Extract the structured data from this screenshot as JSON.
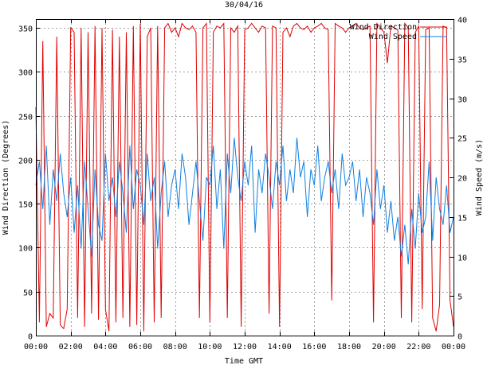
{
  "chart_data": {
    "type": "line",
    "title": "30/04/16",
    "xlabel": "Time GMT",
    "ylabel_left": "Wind Direction (Degrees)",
    "ylabel_right": "Wind Speed (m/s)",
    "x_ticks": [
      "00:00",
      "02:00",
      "04:00",
      "06:00",
      "08:00",
      "10:00",
      "12:00",
      "14:00",
      "16:00",
      "18:00",
      "20:00",
      "22:00",
      "00:00"
    ],
    "x_range_hours": [
      0,
      24
    ],
    "y_left_range": [
      0,
      360
    ],
    "y_left_ticks": [
      0,
      50,
      100,
      150,
      200,
      250,
      300,
      350
    ],
    "y_right_range": [
      0,
      40
    ],
    "y_right_ticks": [
      0,
      5,
      10,
      15,
      20,
      25,
      30,
      35,
      40
    ],
    "grid": true,
    "legend_position": "top-right",
    "series": [
      {
        "name": "Wind Direction",
        "axis": "left",
        "color": "#e00000",
        "x": [
          0.0,
          0.2,
          0.4,
          0.6,
          0.8,
          1.0,
          1.2,
          1.4,
          1.6,
          1.8,
          2.0,
          2.2,
          2.4,
          2.6,
          2.8,
          3.0,
          3.2,
          3.4,
          3.6,
          3.8,
          4.0,
          4.2,
          4.4,
          4.6,
          4.8,
          5.0,
          5.2,
          5.4,
          5.6,
          5.8,
          6.0,
          6.2,
          6.4,
          6.6,
          6.8,
          7.0,
          7.2,
          7.4,
          7.6,
          7.8,
          8.0,
          8.2,
          8.4,
          8.6,
          8.8,
          9.0,
          9.2,
          9.4,
          9.6,
          9.8,
          10.0,
          10.2,
          10.4,
          10.6,
          10.8,
          11.0,
          11.2,
          11.4,
          11.6,
          11.8,
          12.0,
          12.2,
          12.4,
          12.6,
          12.8,
          13.0,
          13.2,
          13.4,
          13.6,
          13.8,
          14.0,
          14.2,
          14.4,
          14.6,
          14.8,
          15.0,
          15.2,
          15.4,
          15.6,
          15.8,
          16.0,
          16.2,
          16.4,
          16.6,
          16.8,
          17.0,
          17.2,
          17.4,
          17.6,
          17.8,
          18.0,
          18.2,
          18.4,
          18.6,
          18.8,
          19.0,
          19.2,
          19.4,
          19.6,
          19.8,
          20.0,
          20.2,
          20.4,
          20.6,
          20.8,
          21.0,
          21.2,
          21.4,
          21.6,
          21.8,
          22.0,
          22.2,
          22.4,
          22.6,
          22.8,
          23.0,
          23.2,
          23.4,
          23.6,
          23.8,
          24.0
        ],
        "values": [
          260,
          15,
          335,
          10,
          25,
          20,
          340,
          12,
          8,
          30,
          350,
          345,
          20,
          350,
          10,
          345,
          25,
          352,
          18,
          350,
          30,
          5,
          348,
          15,
          340,
          20,
          345,
          10,
          352,
          12,
          355,
          5,
          340,
          350,
          15,
          352,
          20,
          350,
          355,
          345,
          350,
          340,
          355,
          350,
          348,
          352,
          345,
          20,
          350,
          355,
          15,
          345,
          352,
          350,
          355,
          20,
          350,
          345,
          352,
          10,
          348,
          350,
          355,
          350,
          345,
          352,
          350,
          25,
          352,
          350,
          10,
          345,
          350,
          340,
          352,
          355,
          350,
          348,
          352,
          345,
          350,
          352,
          355,
          350,
          348,
          40,
          355,
          352,
          350,
          345,
          350,
          352,
          355,
          350,
          348,
          350,
          352,
          15,
          355,
          350,
          345,
          310,
          352,
          350,
          348,
          20,
          355,
          350,
          15,
          345,
          352,
          30,
          348,
          350,
          20,
          5,
          35,
          352,
          350,
          40,
          10
        ],
        "values_note": "values estimated from chart; series oscillates heavily near 0/360 wrap"
      },
      {
        "name": "Wind Speed",
        "axis": "right",
        "color": "#1080e0",
        "x": [
          0.0,
          0.2,
          0.4,
          0.6,
          0.8,
          1.0,
          1.2,
          1.4,
          1.6,
          1.8,
          2.0,
          2.2,
          2.4,
          2.6,
          2.8,
          3.0,
          3.2,
          3.4,
          3.6,
          3.8,
          4.0,
          4.2,
          4.4,
          4.6,
          4.8,
          5.0,
          5.2,
          5.4,
          5.6,
          5.8,
          6.0,
          6.2,
          6.4,
          6.6,
          6.8,
          7.0,
          7.2,
          7.4,
          7.6,
          7.8,
          8.0,
          8.2,
          8.4,
          8.6,
          8.8,
          9.0,
          9.2,
          9.4,
          9.6,
          9.8,
          10.0,
          10.2,
          10.4,
          10.6,
          10.8,
          11.0,
          11.2,
          11.4,
          11.6,
          11.8,
          12.0,
          12.2,
          12.4,
          12.6,
          12.8,
          13.0,
          13.2,
          13.4,
          13.6,
          13.8,
          14.0,
          14.2,
          14.4,
          14.6,
          14.8,
          15.0,
          15.2,
          15.4,
          15.6,
          15.8,
          16.0,
          16.2,
          16.4,
          16.6,
          16.8,
          17.0,
          17.2,
          17.4,
          17.6,
          17.8,
          18.0,
          18.2,
          18.4,
          18.6,
          18.8,
          19.0,
          19.2,
          19.4,
          19.6,
          19.8,
          20.0,
          20.2,
          20.4,
          20.6,
          20.8,
          21.0,
          21.2,
          21.4,
          21.6,
          21.8,
          22.0,
          22.2,
          22.4,
          22.6,
          22.8,
          23.0,
          23.2,
          23.4,
          23.6,
          23.8,
          24.0
        ],
        "values": [
          19,
          22,
          16,
          24,
          14,
          21,
          17,
          23,
          18,
          15,
          20,
          13,
          19,
          11,
          22,
          16,
          10,
          21,
          14,
          12,
          23,
          17,
          20,
          15,
          22,
          18,
          13,
          24,
          16,
          21,
          19,
          14,
          23,
          17,
          20,
          11,
          18,
          22,
          15,
          19,
          21,
          16,
          23,
          20,
          14,
          18,
          22,
          17,
          12,
          20,
          19,
          24,
          16,
          21,
          11,
          23,
          18,
          25,
          20,
          17,
          22,
          19,
          24,
          13,
          21,
          18,
          23,
          20,
          16,
          22,
          19,
          24,
          17,
          21,
          18,
          25,
          20,
          22,
          15,
          21,
          19,
          24,
          17,
          20,
          22,
          18,
          21,
          16,
          23,
          19,
          20,
          22,
          17,
          21,
          15,
          20,
          18,
          14,
          21,
          16,
          19,
          13,
          17,
          12,
          15,
          10,
          14,
          9,
          16,
          11,
          18,
          13,
          15,
          22,
          12,
          20,
          16,
          14,
          19,
          13,
          15
        ]
      }
    ]
  }
}
